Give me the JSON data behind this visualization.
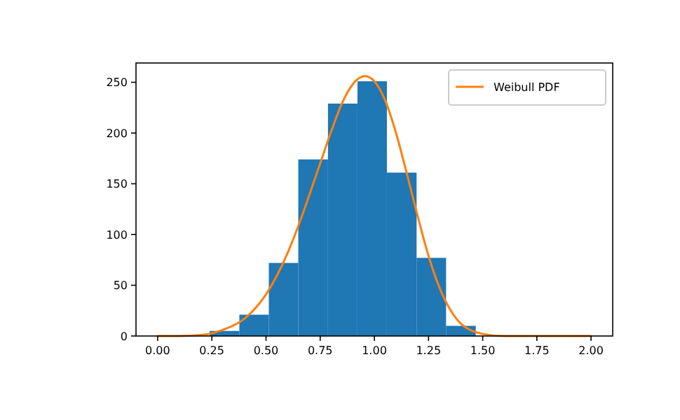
{
  "chart_data": {
    "type": "histogram",
    "xlim": [
      -0.1,
      2.1
    ],
    "ylim": [
      0,
      269
    ],
    "xticks": [
      {
        "value": 0,
        "label": "0.00"
      },
      {
        "value": 0.25,
        "label": "0.25"
      },
      {
        "value": 0.5,
        "label": "0.50"
      },
      {
        "value": 0.75,
        "label": "0.75"
      },
      {
        "value": 1,
        "label": "1.00"
      },
      {
        "value": 1.25,
        "label": "1.25"
      },
      {
        "value": 1.5,
        "label": "1.50"
      },
      {
        "value": 1.75,
        "label": "1.75"
      },
      {
        "value": 2,
        "label": "2.00"
      }
    ],
    "yticks": [
      0,
      50,
      100,
      150,
      200,
      250
    ],
    "grid": false,
    "legend": "top right",
    "series": [
      {
        "color": "#1f77b4",
        "bins": [
          0.24,
          0.377,
          0.513,
          0.649,
          0.786,
          0.922,
          1.058,
          1.195,
          1.331,
          1.468
        ],
        "values": [
          5,
          21,
          72,
          174,
          229,
          251,
          161,
          77,
          10
        ]
      },
      {
        "type": "line",
        "name": "Weibull PDF",
        "color": "#ff7f0e",
        "x": [
          0,
          0.1,
          0.2,
          0.3,
          0.4,
          0.5,
          0.6,
          0.65,
          0.7,
          0.75,
          0.8,
          0.85,
          0.9,
          0.956,
          1.0,
          1.05,
          1.1,
          1.15,
          1.2,
          1.25,
          1.3,
          1.35,
          1.4,
          1.5,
          1.6,
          1.8,
          2.0
        ],
        "values": [
          0,
          0,
          1,
          6,
          17,
          41,
          82,
          109,
          139,
          170,
          201,
          229,
          248,
          256,
          251,
          232,
          200,
          160,
          118,
          79,
          48,
          26,
          12,
          2,
          0,
          0,
          0
        ]
      }
    ]
  }
}
